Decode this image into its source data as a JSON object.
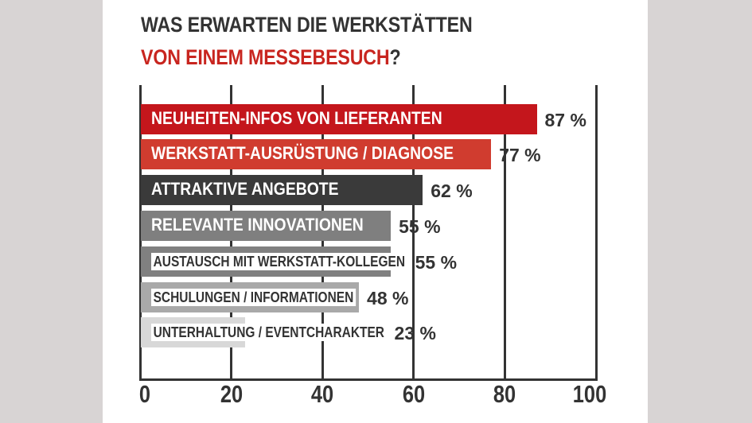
{
  "chart_data": {
    "type": "bar",
    "orientation": "horizontal",
    "title": "WAS ERWARTEN DIE WERKSTÄTTEN VON EINEM MESSEBESUCH?",
    "title_line1": "WAS ERWARTEN DIE WERKSTÄTTEN",
    "title_line2_highlight": "VON EINEM MESSEBESUCH",
    "title_line2_suffix": "?",
    "categories": [
      "NEUHEITEN-INFOS VON LIEFERANTEN",
      "WERKSTATT-AUSRÜSTUNG / DIAGNOSE",
      "ATTRAKTIVE ANGEBOTE",
      "RELEVANTE INNOVATIONEN",
      "AUSTAUSCH MIT WERKSTATT-KOLLEGEN",
      "SCHULUNGEN / INFORMATIONEN",
      "UNTERHALTUNG / EVENTCHARAKTER"
    ],
    "values": [
      87,
      77,
      62,
      55,
      55,
      48,
      23
    ],
    "value_labels": [
      "87 %",
      "77 %",
      "62 %",
      "55 %",
      "55 %",
      "48 %",
      "23 %"
    ],
    "bar_colors": [
      "#c4161c",
      "#d03c2f",
      "#3a3a3a",
      "#7f7f7f",
      "#808080",
      "#a9a9a9",
      "#d8d8d8"
    ],
    "xlabel": "",
    "ylabel": "",
    "xlim": [
      0,
      100
    ],
    "x_ticks": [
      "0",
      "20",
      "40",
      "60",
      "80",
      "100"
    ],
    "grid": true,
    "legend": null
  },
  "colors": {
    "accent": "#c8251f",
    "text": "#333333",
    "background_side": "#d8d4d4",
    "panel": "#ffffff"
  }
}
